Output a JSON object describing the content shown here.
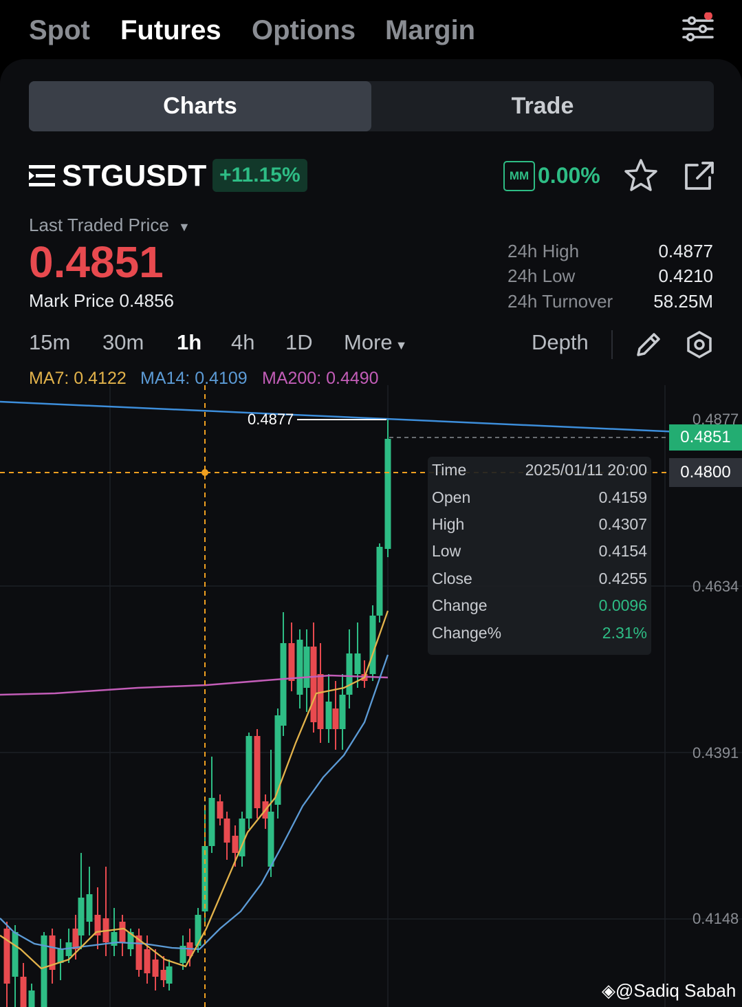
{
  "nav": {
    "tabs": [
      {
        "label": "Spot"
      },
      {
        "label": "Futures"
      },
      {
        "label": "Options"
      },
      {
        "label": "Margin"
      }
    ],
    "active": "Futures"
  },
  "segment": {
    "charts": "Charts",
    "trade": "Trade"
  },
  "symbol": {
    "name": "STGUSDT",
    "change": "+11.15%",
    "mm_label": "MM",
    "mm_value": "0.00%"
  },
  "price": {
    "label": "Last Traded Price",
    "last": "0.4851",
    "mark_label": "Mark Price",
    "mark": "0.4856"
  },
  "stats": [
    {
      "label": "24h High",
      "value": "0.4877"
    },
    {
      "label": "24h Low",
      "value": "0.4210"
    },
    {
      "label": "24h Turnover",
      "value": "58.25M"
    }
  ],
  "intervals": [
    "15m",
    "30m",
    "1h",
    "4h",
    "1D"
  ],
  "active_interval": "1h",
  "more_label": "More",
  "depth_label": "Depth",
  "ma": {
    "ma7": "MA7: 0.4122",
    "ma14": "MA14: 0.4109",
    "ma200": "MA200: 0.4490"
  },
  "colors": {
    "up": "#2ebd85",
    "down": "#e84a4f",
    "ma7": "#e3b34b",
    "ma14": "#5c9bd6",
    "ma200": "#c35db8",
    "crosshair": "#f0a020"
  },
  "chart": {
    "high_marker": "0.4877",
    "axis_labels": [
      "0.4877",
      "0.4634",
      "0.4391",
      "0.4148"
    ],
    "last_tag": "0.4851",
    "cross_tag": "0.4800"
  },
  "tooltip": [
    {
      "label": "Time",
      "value": "2025/01/11 20:00"
    },
    {
      "label": "Open",
      "value": "0.4159"
    },
    {
      "label": "High",
      "value": "0.4307"
    },
    {
      "label": "Low",
      "value": "0.4154"
    },
    {
      "label": "Close",
      "value": "0.4255"
    },
    {
      "label": "Change",
      "value": "0.0096"
    },
    {
      "label": "Change%",
      "value": "2.31%"
    }
  ],
  "watermark": "@Sadiq Sabah"
}
